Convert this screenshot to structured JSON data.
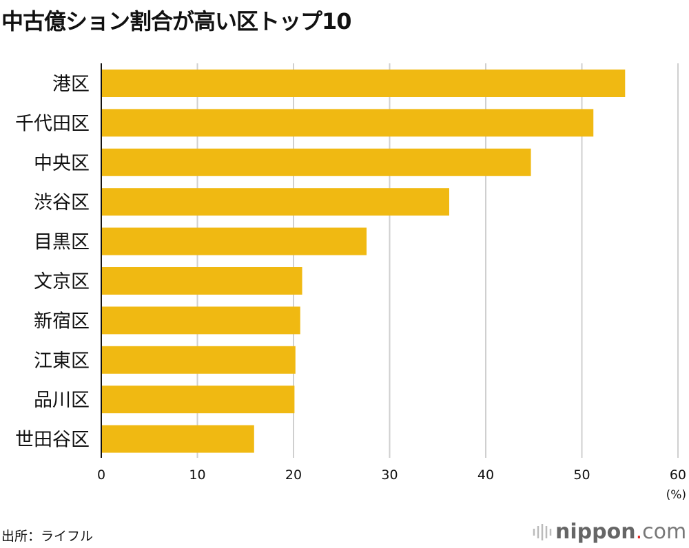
{
  "chart_data": {
    "type": "bar",
    "orientation": "horizontal",
    "title": "中古億ション割合が高い区トップ10",
    "categories": [
      "港区",
      "千代田区",
      "中央区",
      "渋谷区",
      "目黒区",
      "文京区",
      "新宿区",
      "江東区",
      "品川区",
      "世田谷区"
    ],
    "values": [
      54.5,
      51.2,
      44.7,
      36.2,
      27.6,
      20.9,
      20.7,
      20.2,
      20.1,
      15.9
    ],
    "xlim": [
      0,
      60
    ],
    "xticks": [
      "0",
      "10",
      "20",
      "30",
      "40",
      "50",
      "60"
    ],
    "xunit": "(%)",
    "grid": true,
    "bar_color": "#f0b912"
  },
  "source": "出所：ライフル",
  "logo": {
    "name": "nippon",
    "dot": ".",
    "suffix": "com"
  }
}
